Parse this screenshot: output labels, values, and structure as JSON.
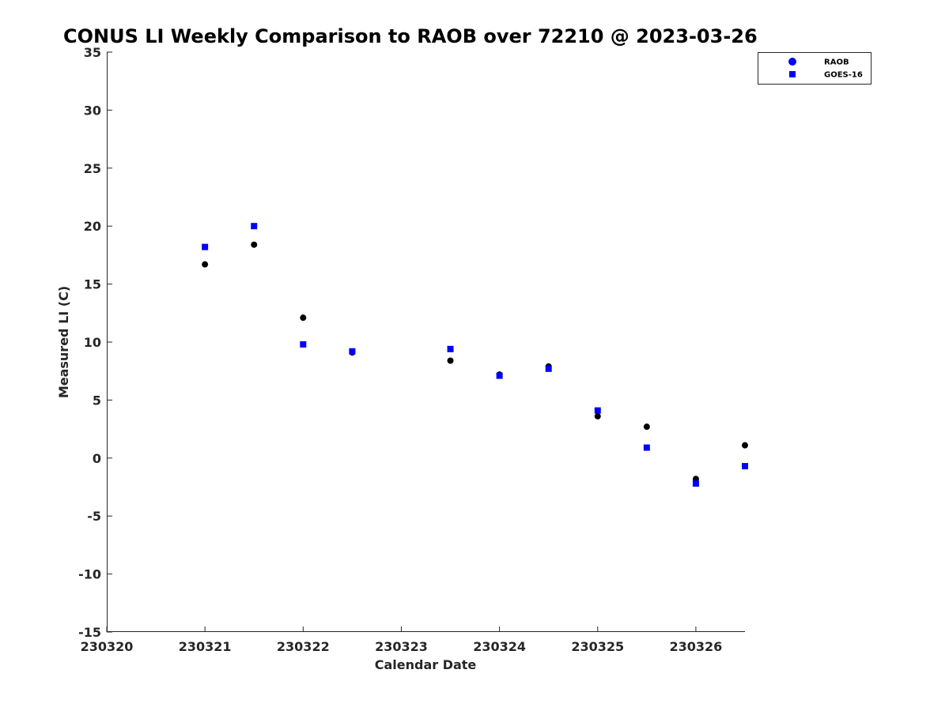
{
  "chart_data": {
    "type": "scatter",
    "title": "CONUS LI Weekly Comparison to RAOB over 72210 @ 2023-03-26",
    "xlabel": "Calendar Date",
    "ylabel": "Measured LI (C)",
    "xlim": [
      0,
      6.5
    ],
    "ylim": [
      -15,
      35
    ],
    "x_ticks": [
      {
        "value": 0,
        "label": "230320"
      },
      {
        "value": 1,
        "label": "230321"
      },
      {
        "value": 2,
        "label": "230322"
      },
      {
        "value": 3,
        "label": "230323"
      },
      {
        "value": 4,
        "label": "230324"
      },
      {
        "value": 5,
        "label": "230325"
      },
      {
        "value": 6,
        "label": "230326"
      }
    ],
    "y_ticks": [
      35,
      30,
      25,
      20,
      15,
      10,
      5,
      0,
      -5,
      -10,
      -15
    ],
    "x_tick_marks": [
      0,
      1,
      2,
      3,
      4,
      5,
      6
    ],
    "legend": {
      "position": "top-right",
      "entries": [
        {
          "name": "RAOB",
          "marker": "circle",
          "color": "#000000",
          "legend_color": "#0000ff"
        },
        {
          "name": "GOES-16",
          "marker": "square",
          "color": "#0000ff"
        }
      ]
    },
    "series": [
      {
        "name": "RAOB",
        "marker": "circle",
        "color": "#000000",
        "x": [
          1.0,
          1.5,
          2.0,
          2.5,
          3.5,
          4.0,
          4.5,
          5.0,
          5.5,
          6.0,
          6.5
        ],
        "y": [
          16.7,
          18.4,
          12.1,
          9.1,
          8.4,
          7.2,
          7.9,
          3.6,
          2.7,
          -1.8,
          1.1
        ]
      },
      {
        "name": "GOES-16",
        "marker": "square",
        "color": "#0000ff",
        "x": [
          1.0,
          1.5,
          2.0,
          2.5,
          3.5,
          4.0,
          4.5,
          5.0,
          5.5,
          6.0,
          6.5
        ],
        "y": [
          18.2,
          20.0,
          9.8,
          9.2,
          9.4,
          7.1,
          7.7,
          4.1,
          0.9,
          -2.2,
          -0.7
        ]
      }
    ]
  }
}
